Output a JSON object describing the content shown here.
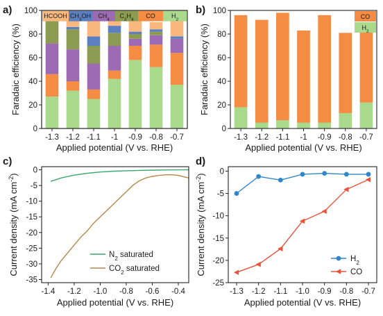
{
  "panels": {
    "a": "a)",
    "b": "b)",
    "c": "c)",
    "d": "d)"
  },
  "chart_data": [
    {
      "type": "bar",
      "panel": "a)",
      "stacked": true,
      "categories": [
        "-1.3",
        "-1.2",
        "-1.1",
        "-1",
        "-0.9",
        "-0.8",
        "-0.7"
      ],
      "series": [
        {
          "name": "H2",
          "color": "#a9d98a",
          "values": [
            27,
            32,
            25,
            42,
            58,
            52,
            37
          ]
        },
        {
          "name": "CO",
          "color": "#f58c44",
          "values": [
            19,
            8,
            8,
            7,
            12,
            19,
            27
          ]
        },
        {
          "name": "C2H4",
          "color": "#9c6bb3",
          "values": [
            26,
            27,
            22,
            21,
            6,
            8,
            12
          ]
        },
        {
          "name": "CH4",
          "color": "#8c9a52",
          "values": [
            19,
            17,
            15,
            11,
            4,
            3,
            0
          ]
        },
        {
          "name": "CH3OH",
          "color": "#5b7fc0",
          "values": [
            2,
            2,
            8,
            6,
            2,
            2,
            2
          ]
        },
        {
          "name": "HCOOH",
          "color": "#f9b97e",
          "values": [
            0,
            6,
            18,
            6,
            9,
            6,
            14
          ]
        }
      ],
      "legend": {
        "HCOOH": "HCOOH",
        "CH3OH_main": "CH",
        "CH3OH_sub": "3",
        "CH3OH_tail": "OH",
        "CH4_main": "CH",
        "CH4_sub": "4",
        "C2H4_a": "C",
        "C2H4_s1": "2",
        "C2H4_b": "H",
        "C2H4_s2": "4",
        "CO": "CO",
        "H2_main": "H",
        "H2_sub": "2"
      },
      "ylabel": "Faradaic efficiency (%)",
      "xlabel": "Applied potential (V vs. RHE)",
      "ylim": [
        0,
        100
      ],
      "yticks": [
        "0",
        "20",
        "40",
        "60",
        "80",
        "100"
      ]
    },
    {
      "type": "bar",
      "panel": "b)",
      "stacked": true,
      "categories": [
        "-1.3",
        "-1.2",
        "-1.1",
        "-1",
        "-0.9",
        "-0.8",
        "-0.7"
      ],
      "series": [
        {
          "name": "H2",
          "color": "#a9d98a",
          "values": [
            18,
            5,
            7,
            5,
            5,
            13,
            22
          ]
        },
        {
          "name": "CO",
          "color": "#f58c44",
          "values": [
            78,
            87,
            91,
            78,
            91,
            68,
            61
          ]
        }
      ],
      "legend": {
        "CO": "CO",
        "H2_main": "H",
        "H2_sub": "2"
      },
      "ylabel": "Faradaic efficiency (%)",
      "xlabel": "Applied potential (V vs. RHE)",
      "ylim": [
        0,
        100
      ],
      "yticks": [
        "0",
        "20",
        "40",
        "60",
        "80",
        "100"
      ]
    },
    {
      "type": "line",
      "panel": "c)",
      "series": [
        {
          "name": "N2 saturated",
          "color": "#3aa76d",
          "x": [
            -1.38,
            -1.3,
            -1.2,
            -1.1,
            -1.0,
            -0.9,
            -0.8,
            -0.7,
            -0.6,
            -0.5,
            -0.4,
            -0.32
          ],
          "y": [
            -3.7,
            -2.6,
            -1.7,
            -1.1,
            -0.7,
            -0.45,
            -0.3,
            -0.2,
            -0.1,
            -0.05,
            -0.02,
            0
          ]
        },
        {
          "name": "CO2 saturated",
          "color": "#b5874a",
          "x": [
            -1.38,
            -1.34,
            -1.3,
            -1.25,
            -1.2,
            -1.15,
            -1.1,
            -1.05,
            -1.0,
            -0.95,
            -0.9,
            -0.85,
            -0.8,
            -0.75,
            -0.7,
            -0.65,
            -0.6,
            -0.55,
            -0.5,
            -0.45,
            -0.4,
            -0.35,
            -0.32
          ],
          "y": [
            -34.5,
            -31.5,
            -29,
            -26.5,
            -24,
            -21.5,
            -19.5,
            -17,
            -15,
            -13,
            -11,
            -9,
            -7,
            -5,
            -3.5,
            -2.6,
            -2.1,
            -1.8,
            -1.6,
            -1.6,
            -1.8,
            -2.3,
            -2.6
          ]
        }
      ],
      "legend": {
        "N2_a": "N",
        "N2_sub": "2",
        "N2_b": " saturated",
        "CO2_a": "CO",
        "CO2_sub": "2",
        "CO2_b": " saturated"
      },
      "ylabel_main": "Current density (mA cm",
      "ylabel_sup": "-2",
      "ylabel_close": ")",
      "xlabel": "Applied potential (V vs. RHE)",
      "xlim": [
        -1.45,
        -0.32
      ],
      "ylim": [
        -36,
        1
      ],
      "xticks": [
        "-1.4",
        "-1.2",
        "-1.0",
        "-0.8",
        "-0.6",
        "-0.4"
      ],
      "yticks": [
        "0",
        "-5",
        "-10",
        "-15",
        "-20",
        "-25",
        "-30",
        "-35"
      ]
    },
    {
      "type": "line",
      "panel": "d)",
      "markers": true,
      "categories": [
        "-1.3",
        "-1.2",
        "-1.1",
        "-1.0",
        "-0.9",
        "-0.8",
        "-0.7"
      ],
      "series": [
        {
          "name": "H2",
          "color": "#2f86c8",
          "marker": "circle",
          "values": [
            -5.0,
            -1.2,
            -2.0,
            -0.7,
            -0.5,
            -0.7,
            -0.7
          ]
        },
        {
          "name": "CO",
          "color": "#e8533a",
          "marker": "triangle-left",
          "values": [
            -22.7,
            -20.9,
            -17.4,
            -11.2,
            -9.0,
            -4.1,
            -1.9
          ]
        }
      ],
      "legend": {
        "H2_main": "H",
        "H2_sub": "2",
        "CO": "CO"
      },
      "ylabel_main": "Current density (mA cm",
      "ylabel_sup": "-2",
      "ylabel_close": ")",
      "xlabel": "Applied potential (V vs. RHE)",
      "ylim": [
        -25,
        1
      ],
      "yticks": [
        "0",
        "-5",
        "-10",
        "-15",
        "-20",
        "-25"
      ]
    }
  ]
}
